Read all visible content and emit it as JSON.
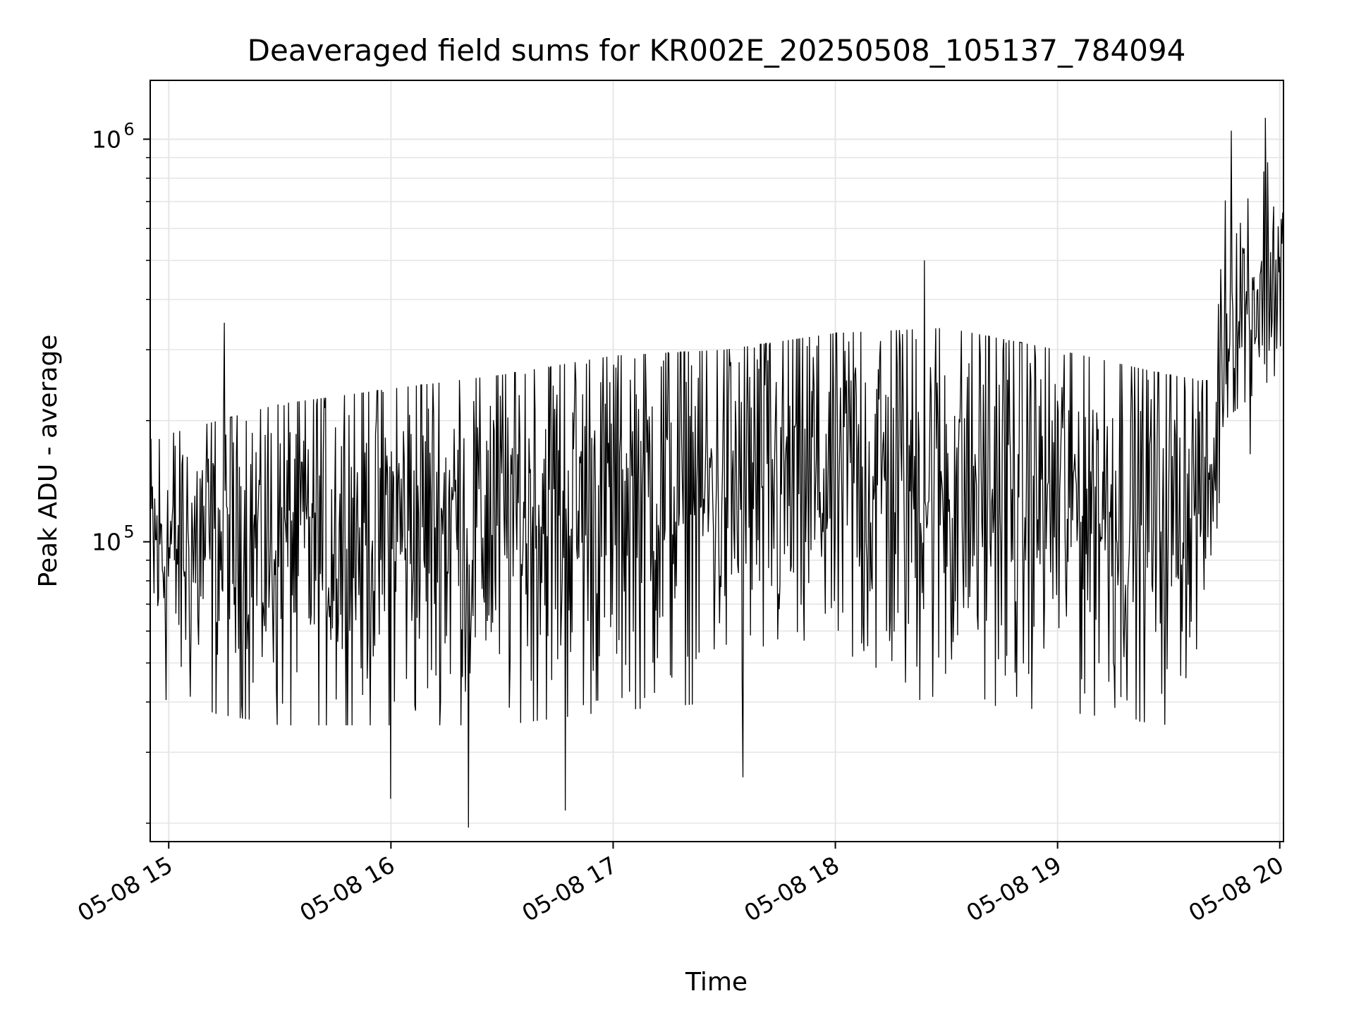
{
  "chart_data": {
    "type": "line",
    "title": "Deaveraged field sums for KR002E_20250508_105137_784094",
    "xlabel": "Time",
    "ylabel": "Peak ADU - average",
    "yscale": "log",
    "ylim": [
      18000,
      1400000
    ],
    "xlim": [
      "2025-05-08T14:55",
      "2025-05-08T20:01"
    ],
    "x_ticks": [
      {
        "label": "05-08 15",
        "time": "2025-05-08T15:00"
      },
      {
        "label": "05-08 16",
        "time": "2025-05-08T16:00"
      },
      {
        "label": "05-08 17",
        "time": "2025-05-08T17:00"
      },
      {
        "label": "05-08 18",
        "time": "2025-05-08T18:00"
      },
      {
        "label": "05-08 19",
        "time": "2025-05-08T19:00"
      },
      {
        "label": "05-08 20",
        "time": "2025-05-08T20:00"
      }
    ],
    "y_ticks": [
      {
        "base": "10",
        "exp": "5",
        "value": 100000
      },
      {
        "base": "10",
        "exp": "6",
        "value": 1000000
      }
    ],
    "grid": true,
    "line_color": "#000000",
    "grid_color": "#e6e6e6",
    "series": [
      {
        "start": "2025-05-08T14:55",
        "end": "2025-05-08T20:01",
        "levels": [
          {
            "time": "2025-05-08T14:55",
            "median": 95000,
            "low": 40000,
            "high": 180000
          },
          {
            "time": "2025-05-08T15:30",
            "median": 100000,
            "low": 35000,
            "high": 220000
          },
          {
            "time": "2025-05-08T16:00",
            "median": 110000,
            "low": 35000,
            "high": 240000
          },
          {
            "time": "2025-05-08T16:30",
            "median": 115000,
            "low": 35000,
            "high": 260000
          },
          {
            "time": "2025-05-08T17:00",
            "median": 125000,
            "low": 38000,
            "high": 290000
          },
          {
            "time": "2025-05-08T17:30",
            "median": 135000,
            "low": 40000,
            "high": 300000
          },
          {
            "time": "2025-05-08T18:00",
            "median": 145000,
            "low": 42000,
            "high": 330000
          },
          {
            "time": "2025-05-08T18:30",
            "median": 135000,
            "low": 40000,
            "high": 340000
          },
          {
            "time": "2025-05-08T19:00",
            "median": 130000,
            "low": 38000,
            "high": 300000
          },
          {
            "time": "2025-05-08T19:30",
            "median": 120000,
            "low": 35000,
            "high": 260000
          },
          {
            "time": "2025-05-08T19:42",
            "median": 140000,
            "low": 70000,
            "high": 250000
          },
          {
            "time": "2025-05-08T19:45",
            "median": 360000,
            "low": 200000,
            "high": 700000
          },
          {
            "time": "2025-05-08T20:01",
            "median": 480000,
            "low": 270000,
            "high": 1000000
          }
        ],
        "spikes": [
          {
            "time": "2025-05-08T15:15",
            "value": 350000
          },
          {
            "time": "2025-05-08T16:00",
            "value": 23000
          },
          {
            "time": "2025-05-08T16:21",
            "value": 19500
          },
          {
            "time": "2025-05-08T16:47",
            "value": 21500
          },
          {
            "time": "2025-05-08T17:35",
            "value": 26000
          },
          {
            "time": "2025-05-08T18:24",
            "value": 500000
          },
          {
            "time": "2025-05-08T19:47",
            "value": 1050000
          },
          {
            "time": "2025-05-08T19:56",
            "value": 1130000
          },
          {
            "time": "2025-05-08T19:52",
            "value": 165000
          }
        ]
      }
    ]
  }
}
